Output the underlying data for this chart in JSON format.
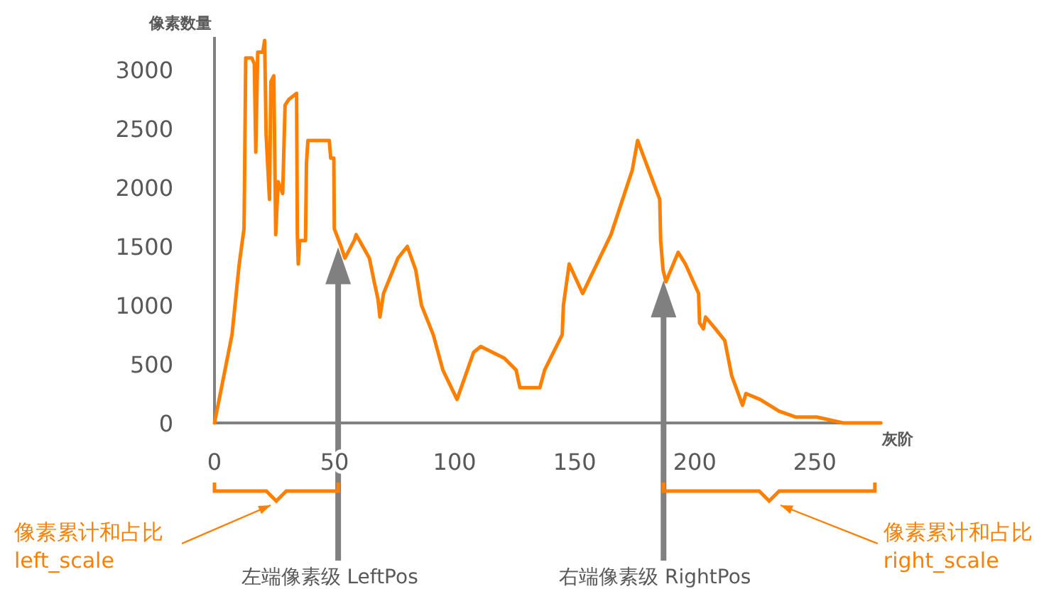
{
  "chart_data": {
    "type": "line",
    "xlabel": "灰阶",
    "ylabel": "像素数量",
    "xlim": [
      0,
      278
    ],
    "ylim": [
      0,
      3280
    ],
    "xticks": [
      0,
      50,
      100,
      150,
      200,
      250
    ],
    "yticks": [
      0,
      500,
      1000,
      1500,
      2000,
      2500,
      3000
    ],
    "marker": "none",
    "line_style": "solid",
    "series": [
      {
        "color": "#ff8000",
        "x": [
          0,
          7.3,
          10.3,
          12.3,
          12.5,
          13,
          15.6,
          16.6,
          17.2,
          18,
          20.1,
          20.9,
          21.5,
          22.9,
          23.5,
          24.7,
          25.5,
          26.5,
          28.4,
          29.4,
          31,
          34.2,
          34.5,
          34.9,
          35.5,
          37.9,
          38.3,
          38.9,
          47.8,
          48.4,
          49.7,
          49.9,
          52.7,
          54.3,
          58.2,
          59,
          64.5,
          66.5,
          68.1,
          68.9,
          70.4,
          76.4,
          80.3,
          83.8,
          86.2,
          91.1,
          95.1,
          101,
          107.9,
          110.9,
          120.7,
          125.6,
          127.2,
          135.5,
          137.5,
          144.8,
          145.3,
          147.7,
          153.3,
          165.1,
          174,
          176.2,
          185.4,
          185.8,
          186.8,
          188,
          193.1,
          196.1,
          201.6,
          202,
          203.6,
          204.5,
          208.6,
          212.5,
          215.4,
          219.9,
          221.3,
          227.2,
          235.1,
          242,
          250.9,
          261.8,
          277.5
        ],
        "values": [
          0,
          750,
          1350,
          1650,
          2000,
          3100,
          3100,
          3050,
          2300,
          3150,
          3150,
          3250,
          2450,
          1900,
          2900,
          2950,
          1600,
          2050,
          1950,
          2700,
          2750,
          2800,
          1600,
          1350,
          1550,
          1550,
          2200,
          2400,
          2400,
          2250,
          2250,
          1650,
          1500,
          1400,
          1550,
          1600,
          1400,
          1200,
          1050,
          900,
          1100,
          1400,
          1500,
          1300,
          1000,
          750,
          450,
          200,
          600,
          650,
          550,
          450,
          300,
          300,
          450,
          750,
          1000,
          1350,
          1100,
          1600,
          2150,
          2400,
          1900,
          1550,
          1300,
          1200,
          1450,
          1350,
          1100,
          850,
          800,
          900,
          800,
          700,
          400,
          150,
          250,
          200,
          100,
          50,
          50,
          0,
          0
        ]
      }
    ],
    "ref_lines": [
      {
        "axis": "x",
        "value": 51.5,
        "label": "左端像素级 LeftPos",
        "color": "#808080"
      },
      {
        "axis": "x",
        "value": 187,
        "label": "右端像素级 RightPos",
        "color": "#808080"
      }
    ],
    "annotations": [
      "像素累计和占比 left_scale",
      "像素累计和占比 right_scale"
    ]
  }
}
